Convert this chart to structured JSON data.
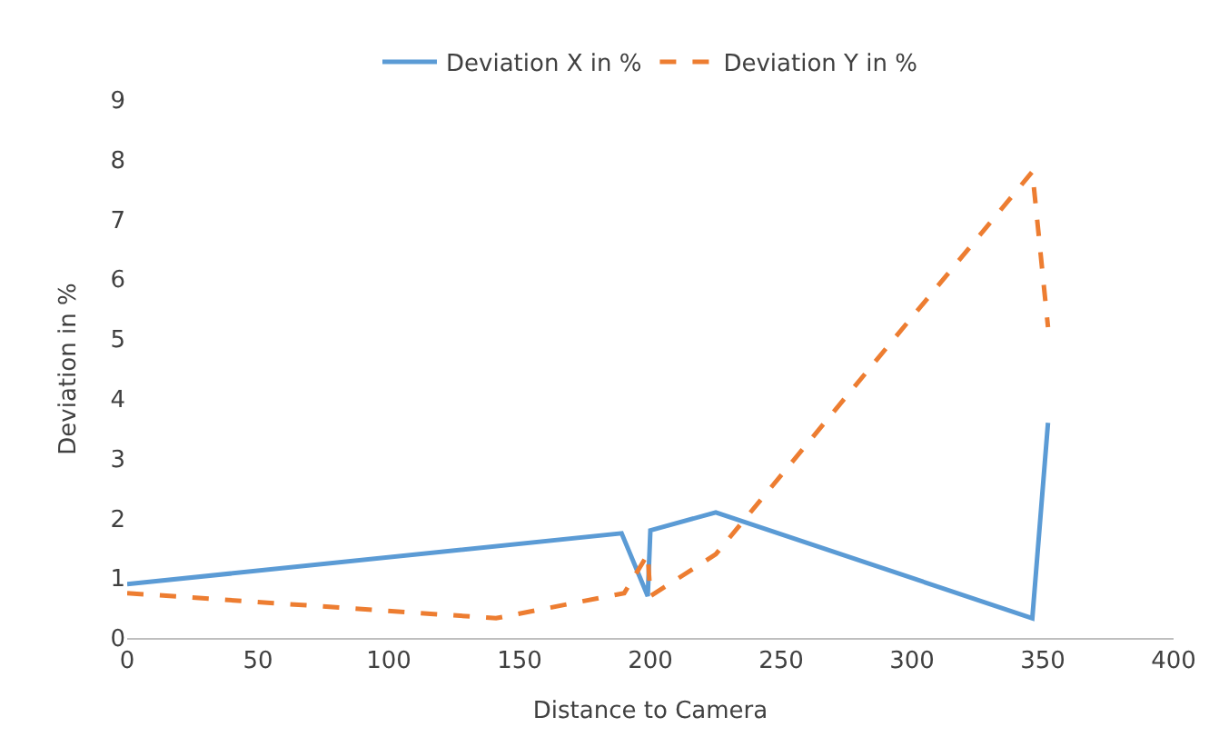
{
  "chart_data": {
    "type": "line",
    "xlabel": "Distance to Camera",
    "ylabel": "Deviation in %",
    "series": [
      {
        "name": "Deviation X in %",
        "color": "#5b9bd5",
        "line_style": "solid",
        "x": [
          0,
          189,
          199,
          200,
          225,
          346,
          352
        ],
        "values": [
          0.9,
          1.75,
          0.7,
          1.8,
          2.1,
          0.33,
          3.6
        ]
      },
      {
        "name": "Deviation Y in %",
        "color": "#ed7d31",
        "line_style": "dashed",
        "x": [
          0,
          141,
          190,
          199,
          200,
          225,
          346,
          352
        ],
        "values": [
          0.75,
          0.33,
          0.75,
          1.4,
          0.7,
          1.4,
          7.8,
          5.2
        ]
      }
    ],
    "xlim": [
      0,
      400
    ],
    "xticks": [
      0,
      50,
      100,
      150,
      200,
      250,
      300,
      350,
      400
    ],
    "ylim": [
      0,
      9
    ],
    "yticks": [
      0,
      1,
      2,
      3,
      4,
      5,
      6,
      7,
      8,
      9
    ],
    "grid": false,
    "legend": "top",
    "marker": "none"
  }
}
